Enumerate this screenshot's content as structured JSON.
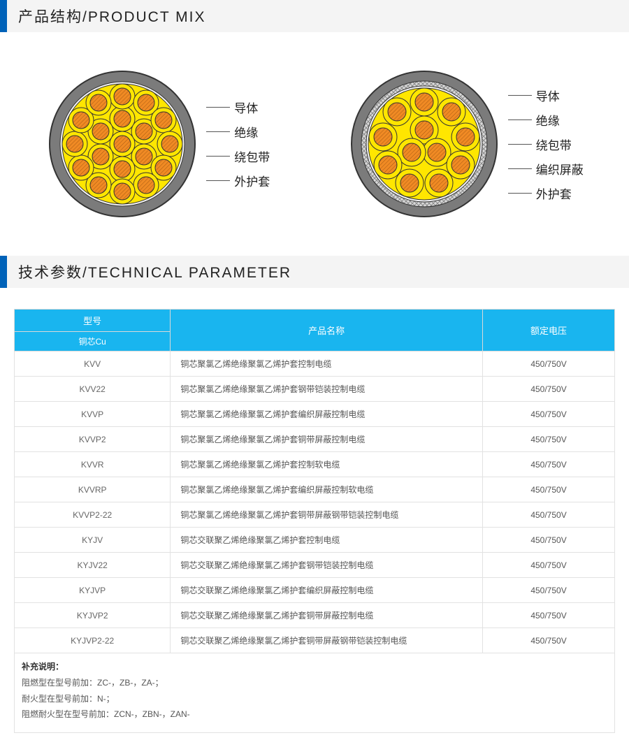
{
  "section1": {
    "title": "产品结构/PRODUCT  MIX"
  },
  "section2": {
    "title": "技术参数/TECHNICAL  PARAMETER"
  },
  "diagramA": {
    "labels": [
      "导体",
      "绝缘",
      "绕包带",
      "外护套"
    ],
    "colors": {
      "jacket": "#7b7b7b",
      "tape": "#f4f4f4",
      "insulation": "#ffe600",
      "conductor_fill": "#f08a24",
      "conductor_stroke": "#a85a12"
    }
  },
  "diagramB": {
    "labels": [
      "导体",
      "绝缘",
      "绕包带",
      "编织屏蔽",
      "外护套"
    ],
    "colors": {
      "jacket": "#7b7b7b",
      "shield": "#cfcfcf",
      "tape": "#f4f4f4",
      "insulation": "#ffe600",
      "conductor_fill": "#f08a24",
      "conductor_stroke": "#a85a12"
    }
  },
  "table": {
    "header": {
      "model": "型号",
      "model_sub": "铜芯Cu",
      "name": "产品名称",
      "voltage": "额定电压"
    },
    "header_bg": "#19b5ef",
    "rows": [
      {
        "model": "KVV",
        "name": "铜芯聚氯乙烯绝缘聚氯乙烯护套控制电缆",
        "voltage": "450/750V"
      },
      {
        "model": "KVV22",
        "name": "铜芯聚氯乙烯绝缘聚氯乙烯护套钢带铠装控制电缆",
        "voltage": "450/750V"
      },
      {
        "model": "KVVP",
        "name": "铜芯聚氯乙烯绝缘聚氯乙烯护套编织屏蔽控制电缆",
        "voltage": "450/750V"
      },
      {
        "model": "KVVP2",
        "name": "铜芯聚氯乙烯绝缘聚氯乙烯护套铜带屏蔽控制电缆",
        "voltage": "450/750V"
      },
      {
        "model": "KVVR",
        "name": "铜芯聚氯乙烯绝缘聚氯乙烯护套控制软电缆",
        "voltage": "450/750V"
      },
      {
        "model": "KVVRP",
        "name": "铜芯聚氯乙烯绝缘聚氯乙烯护套编织屏蔽控制软电缆",
        "voltage": "450/750V"
      },
      {
        "model": "KVVP2-22",
        "name": "铜芯聚氯乙烯绝缘聚氯乙烯护套铜带屏蔽钢带铠装控制电缆",
        "voltage": "450/750V"
      },
      {
        "model": "KYJV",
        "name": "铜芯交联聚乙烯绝缘聚氯乙烯护套控制电缆",
        "voltage": "450/750V"
      },
      {
        "model": "KYJV22",
        "name": "铜芯交联聚乙烯绝缘聚氯乙烯护套钢带铠装控制电缆",
        "voltage": "450/750V"
      },
      {
        "model": "KYJVP",
        "name": "铜芯交联聚乙烯绝缘聚氯乙烯护套编织屏蔽控制电缆",
        "voltage": "450/750V"
      },
      {
        "model": "KYJVP2",
        "name": "铜芯交联聚乙烯绝缘聚氯乙烯护套铜带屏蔽控制电缆",
        "voltage": "450/750V"
      },
      {
        "model": "KYJVP2-22",
        "name": "铜芯交联聚乙烯绝缘聚氯乙烯护套铜带屏蔽钢带铠装控制电缆",
        "voltage": "450/750V"
      }
    ]
  },
  "notes": {
    "title": "补充说明：",
    "lines": [
      "阻燃型在型号前加：ZC-，ZB-，ZA-；",
      "耐火型在型号前加：N-；",
      "阻燃耐火型在型号前加：ZCN-，ZBN-，ZAN-"
    ]
  }
}
